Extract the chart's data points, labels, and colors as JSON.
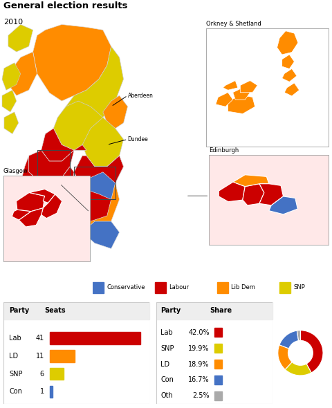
{
  "title": "General election results",
  "year": "2010",
  "colors": {
    "Conservative": "#4472C4",
    "Labour": "#CC0000",
    "LibDem": "#FF8C00",
    "SNP": "#DDCC00",
    "Other": "#AAAAAA",
    "bg": "#FFFFFF",
    "panel_bg": "#EEEEEE",
    "inset_bg": "#FFE8E8"
  },
  "seats": [
    [
      "Lab",
      41,
      "#CC0000"
    ],
    [
      "LD",
      11,
      "#FF8C00"
    ],
    [
      "SNP",
      6,
      "#DDCC00"
    ],
    [
      "Con",
      1,
      "#4472C4"
    ]
  ],
  "seats_max": 41,
  "share": [
    [
      "Lab",
      42.0,
      "#CC0000"
    ],
    [
      "SNP",
      19.9,
      "#DDCC00"
    ],
    [
      "LD",
      18.9,
      "#FF8C00"
    ],
    [
      "Con",
      16.7,
      "#4472C4"
    ],
    [
      "Oth",
      2.5,
      "#AAAAAA"
    ]
  ]
}
